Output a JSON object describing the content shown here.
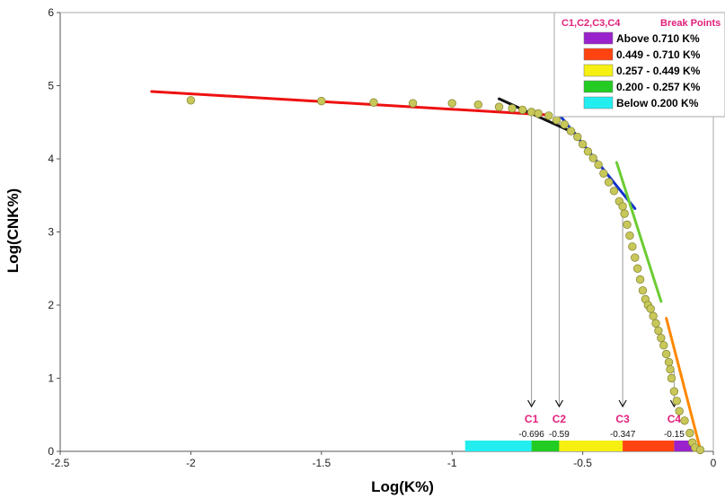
{
  "chart_data": {
    "type": "scatter",
    "title": "",
    "xlabel": "Log(K%)",
    "ylabel": "Log(CNK%)",
    "xlim": [
      -2.5,
      0
    ],
    "ylim": [
      0,
      6
    ],
    "x_ticks": [
      "-2.5",
      "-2",
      "-1.5",
      "-1",
      "-0.5",
      "0"
    ],
    "y_ticks": [
      "0",
      "1",
      "2",
      "3",
      "4",
      "5",
      "6"
    ],
    "grid": false,
    "legend_placement": "top-right",
    "points": {
      "color": "#c8c85a",
      "x": [
        -2.0,
        -1.5,
        -1.3,
        -1.15,
        -1.0,
        -0.9,
        -0.82,
        -0.77,
        -0.73,
        -0.696,
        -0.67,
        -0.63,
        -0.6,
        -0.57,
        -0.545,
        -0.52,
        -0.5,
        -0.48,
        -0.46,
        -0.44,
        -0.42,
        -0.4,
        -0.38,
        -0.36,
        -0.347,
        -0.34,
        -0.33,
        -0.32,
        -0.31,
        -0.3,
        -0.29,
        -0.28,
        -0.27,
        -0.26,
        -0.25,
        -0.24,
        -0.23,
        -0.22,
        -0.21,
        -0.2,
        -0.19,
        -0.18,
        -0.17,
        -0.165,
        -0.16,
        -0.15,
        -0.14,
        -0.13,
        -0.11,
        -0.09,
        -0.08,
        -0.07,
        -0.05
      ],
      "y": [
        4.8,
        4.79,
        4.77,
        4.76,
        4.76,
        4.74,
        4.71,
        4.69,
        4.67,
        4.64,
        4.62,
        4.59,
        4.53,
        4.47,
        4.38,
        4.3,
        4.2,
        4.1,
        4.01,
        3.92,
        3.8,
        3.68,
        3.56,
        3.42,
        3.35,
        3.25,
        3.1,
        2.95,
        2.8,
        2.65,
        2.5,
        2.35,
        2.2,
        2.08,
        2.0,
        1.95,
        1.85,
        1.75,
        1.65,
        1.55,
        1.45,
        1.33,
        1.22,
        1.12,
        1.0,
        0.82,
        0.69,
        0.55,
        0.42,
        0.25,
        0.12,
        0.05,
        0.02
      ]
    },
    "fit_lines": [
      {
        "color": "#ee1111",
        "x": [
          -2.15,
          -0.63
        ],
        "y": [
          4.92,
          4.6
        ]
      },
      {
        "color": "#111111",
        "x": [
          -0.82,
          -0.53
        ],
        "y": [
          4.82,
          4.35
        ]
      },
      {
        "color": "#1133cc",
        "x": [
          -0.6,
          -0.3
        ],
        "y": [
          4.65,
          3.32
        ]
      },
      {
        "color": "#6ccc33",
        "x": [
          -0.37,
          -0.2
        ],
        "y": [
          3.95,
          2.05
        ]
      },
      {
        "color": "#ff8800",
        "x": [
          -0.18,
          -0.05
        ],
        "y": [
          1.82,
          0.03
        ]
      }
    ],
    "break_points": [
      {
        "label": "C1",
        "x": -0.696,
        "value_label": "-0.696"
      },
      {
        "label": "C2",
        "x": -0.59,
        "value_label": "-0.59"
      },
      {
        "label": "C3",
        "x": -0.347,
        "value_label": "-0.347"
      },
      {
        "label": "C4",
        "x": -0.15,
        "value_label": "-0.15"
      }
    ],
    "range_bar": [
      {
        "from": -0.95,
        "to": -0.696,
        "color": "#22eef0"
      },
      {
        "from": -0.696,
        "to": -0.59,
        "color": "#22cc22"
      },
      {
        "from": -0.59,
        "to": -0.347,
        "color": "#f5f011"
      },
      {
        "from": -0.347,
        "to": -0.15,
        "color": "#ff4411"
      },
      {
        "from": -0.15,
        "to": -0.07,
        "color": "#9922cc"
      }
    ],
    "legend": {
      "title_left": "C1,C2,C3,C4",
      "title_right": "Break Points",
      "entries": [
        {
          "label": "Above 0.710 K%",
          "color": "#9922cc"
        },
        {
          "label": "0.449 - 0.710 K%",
          "color": "#ff4411"
        },
        {
          "label": "0.257 - 0.449 K%",
          "color": "#f5f011"
        },
        {
          "label": "0.200 - 0.257 K%",
          "color": "#22cc22"
        },
        {
          "label": "Below 0.200 K%",
          "color": "#22eef0"
        }
      ]
    }
  }
}
